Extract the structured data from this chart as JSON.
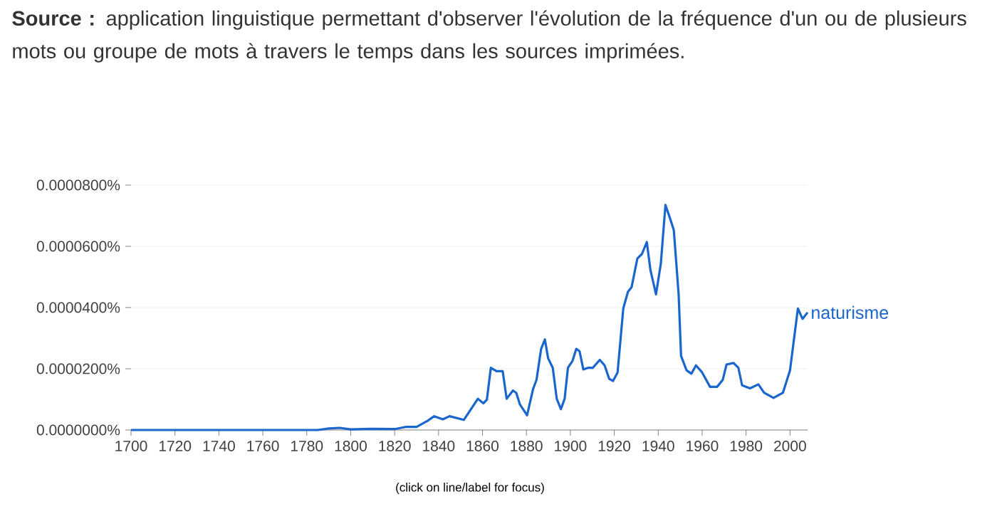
{
  "chart_data": {
    "type": "line",
    "annotations": [
      "**Source :** application linguistique permettant d'observer l'évolution de la fréquence d'un ou de plusieurs mots ou groupe de mots à travers le temps dans les sources imprimées.",
      "(click on line/label for focus)"
    ],
    "series": [
      {
        "name": "naturisme",
        "color": "#1a66cc",
        "x": [
          1700,
          1785,
          1790,
          1795,
          1800,
          1810,
          1820,
          1825,
          1830,
          1835,
          1838,
          1842,
          1845,
          1851.5,
          1857.9,
          1860.4,
          1862,
          1863.8,
          1866.4,
          1869.2,
          1871,
          1873.9,
          1875.4,
          1877,
          1880.3,
          1883,
          1884.6,
          1886.7,
          1888.4,
          1889.9,
          1892,
          1893.8,
          1895.7,
          1897.4,
          1898.9,
          1901,
          1902.7,
          1904.2,
          1905.9,
          1908,
          1910.2,
          1913.4,
          1915.6,
          1917.7,
          1919.4,
          1921.5,
          1924.1,
          1926.2,
          1927.9,
          1930.5,
          1932.6,
          1934.8,
          1936.5,
          1939,
          1941.2,
          1943.3,
          1945.4,
          1947.1,
          1949.3,
          1950.4,
          1952.9,
          1955.1,
          1957.2,
          1960,
          1963.6,
          1966.8,
          1969.4,
          1971.1,
          1974.3,
          1976.5,
          1978.2,
          1981.8,
          1985.6,
          1988.2,
          1992.5,
          1996.8,
          2000,
          2003.6,
          2005.7,
          2008
        ],
        "values": [
          0,
          0,
          5e-07,
          7e-07,
          2e-07,
          4e-07,
          3e-07,
          1e-06,
          1e-06,
          3e-06,
          4.5e-06,
          3.5e-06,
          4.5e-06,
          3.3e-06,
          1.02e-05,
          8.7e-06,
          9.9e-06,
          2.03e-05,
          1.92e-05,
          1.92e-05,
          1.02e-05,
          1.29e-05,
          1.21e-05,
          8.4e-06,
          4.8e-06,
          1.33e-05,
          1.64e-05,
          2.65e-05,
          2.96e-05,
          2.34e-05,
          2.03e-05,
          1.02e-05,
          6.8e-06,
          1.02e-05,
          2.03e-05,
          2.26e-05,
          2.65e-05,
          2.57e-05,
          1.98e-05,
          2.03e-05,
          2.03e-05,
          2.29e-05,
          2.11e-05,
          1.67e-05,
          1.6e-05,
          1.88e-05,
          3.97e-05,
          4.51e-05,
          4.67e-05,
          5.6e-05,
          5.75e-05,
          6.14e-05,
          5.21e-05,
          4.43e-05,
          5.44e-05,
          7.35e-05,
          6.91e-05,
          6.53e-05,
          4.43e-05,
          2.42e-05,
          1.95e-05,
          1.84e-05,
          2.11e-05,
          1.88e-05,
          1.41e-05,
          1.41e-05,
          1.64e-05,
          2.14e-05,
          2.19e-05,
          2.03e-05,
          1.46e-05,
          1.36e-05,
          1.49e-05,
          1.22e-05,
          1.05e-05,
          1.22e-05,
          1.95e-05,
          3.97e-05,
          3.63e-05,
          3.84e-05
        ]
      }
    ],
    "xlim": [
      1700,
      2008
    ],
    "xticks": [
      1700,
      1720,
      1740,
      1760,
      1780,
      1800,
      1820,
      1840,
      1860,
      1880,
      1900,
      1920,
      1940,
      1960,
      1980,
      2000
    ],
    "ylim": [
      0,
      8e-05
    ],
    "yticks": [
      {
        "value": 0,
        "label": "0.0000000%"
      },
      {
        "value": 2e-05,
        "label": "0.0000200%"
      },
      {
        "value": 4e-05,
        "label": "0.0000400%"
      },
      {
        "value": 6e-05,
        "label": "0.0000600%"
      },
      {
        "value": 8e-05,
        "label": "0.0000800%"
      }
    ],
    "grid": "y",
    "marker": "none",
    "line_style": "solid"
  }
}
